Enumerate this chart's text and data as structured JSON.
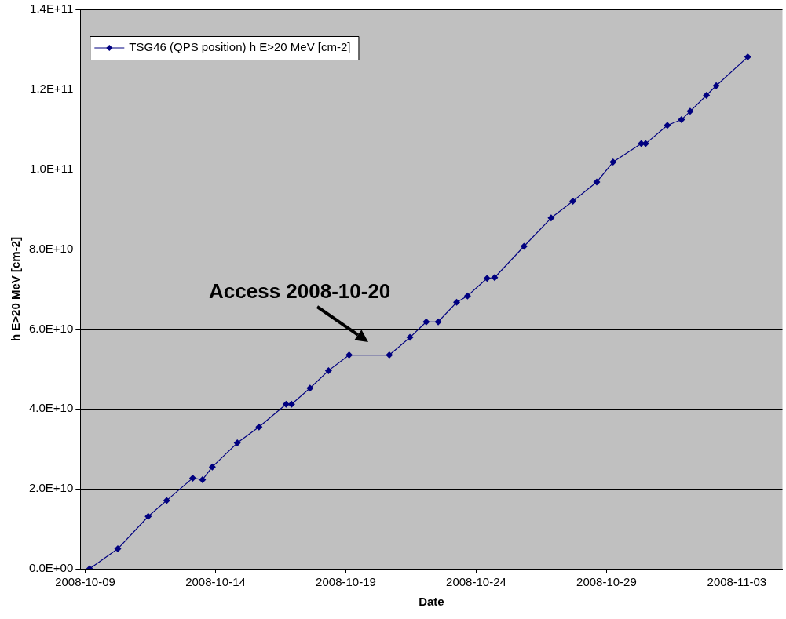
{
  "chart_data": {
    "type": "line",
    "xlabel": "Date",
    "ylabel": "h E>20 MeV [cm-2]",
    "x": [
      "2008-10-09T04:00",
      "2008-10-10T06:00",
      "2008-10-11T10:00",
      "2008-10-12T03:00",
      "2008-10-13T03:00",
      "2008-10-13T12:00",
      "2008-10-13T21:00",
      "2008-10-14T20:00",
      "2008-10-15T16:00",
      "2008-10-16T17:00",
      "2008-10-16T22:00",
      "2008-10-17T15:00",
      "2008-10-18T08:00",
      "2008-10-19T03:00",
      "2008-10-20T16:00",
      "2008-10-21T11:00",
      "2008-10-22T02:00",
      "2008-10-22T13:00",
      "2008-10-23T06:00",
      "2008-10-23T16:00",
      "2008-10-24T10:00",
      "2008-10-24T17:00",
      "2008-10-25T20:00",
      "2008-10-26T21:00",
      "2008-10-27T17:00",
      "2008-10-28T15:00",
      "2008-10-29T06:00",
      "2008-10-30T08:00",
      "2008-10-30T12:00",
      "2008-10-31T08:00",
      "2008-10-31T21:00",
      "2008-11-01T05:00",
      "2008-11-01T20:00",
      "2008-11-02T05:00",
      "2008-11-03T10:00"
    ],
    "series": [
      {
        "name": "TSG46 (QPS position) h E>20 MeV [cm-2]",
        "color": "#000080",
        "values": [
          0,
          5000000000.0,
          13100000000.0,
          17100000000.0,
          22700000000.0,
          22300000000.0,
          25500000000.0,
          31500000000.0,
          35500000000.0,
          41200000000.0,
          41200000000.0,
          45200000000.0,
          49600000000.0,
          53500000000.0,
          53500000000.0,
          57900000000.0,
          61800000000.0,
          61800000000.0,
          66700000000.0,
          68300000000.0,
          72700000000.0,
          72900000000.0,
          80700000000.0,
          87800000000.0,
          92000000000.0,
          96800000000.0,
          101800000000.0,
          106400000000.0,
          106400000000.0,
          111000000000.0,
          112400000000.0,
          114500000000.0,
          118500000000.0,
          120900000000.0,
          128100000000.0
        ]
      }
    ],
    "xlim": [
      "2008-10-08T19:30",
      "2008-11-04T18:00"
    ],
    "xticks": [
      "2008-10-09",
      "2008-10-14",
      "2008-10-19",
      "2008-10-24",
      "2008-10-29",
      "2008-11-03"
    ],
    "ylim": [
      0,
      140000000000.0
    ],
    "yticks": [
      {
        "value": 0,
        "label": "0.0E+00"
      },
      {
        "value": 20000000000.0,
        "label": "2.0E+10"
      },
      {
        "value": 40000000000.0,
        "label": "4.0E+10"
      },
      {
        "value": 60000000000.0,
        "label": "6.0E+10"
      },
      {
        "value": 80000000000.0,
        "label": "8.0E+10"
      },
      {
        "value": 100000000000.0,
        "label": "1.0E+11"
      },
      {
        "value": 120000000000.0,
        "label": "1.2E+11"
      },
      {
        "value": 140000000000.0,
        "label": "1.4E+11"
      }
    ],
    "grid": "y",
    "legend": "top left",
    "marker": "diamond",
    "line_style": "solid",
    "annotations": [
      {
        "text": "Access 2008-10-20",
        "x": "2008-10-20T00:00",
        "y": 53500000000.0
      }
    ]
  }
}
